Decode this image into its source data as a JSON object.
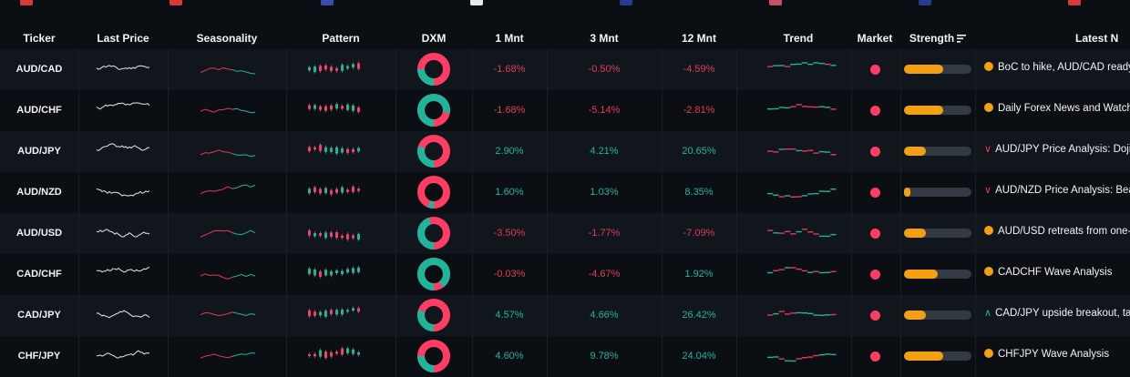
{
  "columns": {
    "ticker": "Ticker",
    "last_price": "Last Price",
    "seasonality": "Seasonality",
    "pattern": "Pattern",
    "dxm": "DXM",
    "m1": "1 Mnt",
    "m3": "3 Mnt",
    "m12": "12 Mnt",
    "trend": "Trend",
    "market": "Market",
    "strength": "Strength",
    "news": "Latest N"
  },
  "colors": {
    "positive": "#1fb59a",
    "negative": "#e23b58",
    "accent": "#f59f12",
    "market_dot": "#ff3c64"
  },
  "rows": [
    {
      "ticker": "AUD/CAD",
      "m1": "-1.68%",
      "m3": "-0.50%",
      "m12": "-4.59%",
      "dxm_green": 0.25,
      "strength": 0.58,
      "news_icon": "circle",
      "news": "BoC to hike, AUD/CAD ready to"
    },
    {
      "ticker": "AUD/CHF",
      "m1": "-1.68%",
      "m3": "-5.14%",
      "m12": "-2.81%",
      "dxm_green": 0.78,
      "strength": 0.58,
      "news_icon": "circle",
      "news": "Daily Forex News and Watchlist"
    },
    {
      "ticker": "AUD/JPY",
      "m1": "2.90%",
      "m3": "4.21%",
      "m12": "20.65%",
      "dxm_green": 0.3,
      "strength": 0.33,
      "news_icon": "chevron-down",
      "news": "AUD/JPY Price Analysis: Doji"
    },
    {
      "ticker": "AUD/NZD",
      "m1": "1.60%",
      "m3": "1.03%",
      "m12": "8.35%",
      "dxm_green": 0.06,
      "strength": 0.1,
      "news_icon": "chevron-down",
      "news": "AUD/NZD Price Analysis: Bea"
    },
    {
      "ticker": "AUD/USD",
      "m1": "-3.50%",
      "m3": "-1.77%",
      "m12": "-7.09%",
      "dxm_green": 0.45,
      "strength": 0.33,
      "news_icon": "circle",
      "news": "AUD/USD retreats from one-w"
    },
    {
      "ticker": "CAD/CHF",
      "m1": "-0.03%",
      "m3": "-4.67%",
      "m12": "1.92%",
      "dxm_green": 0.9,
      "strength": 0.5,
      "news_icon": "circle",
      "news": "CADCHF Wave Analysis"
    },
    {
      "ticker": "CAD/JPY",
      "m1": "4.57%",
      "m3": "4.66%",
      "m12": "26.42%",
      "dxm_green": 0.3,
      "strength": 0.33,
      "news_icon": "chevron-up",
      "news": "CAD/JPY upside breakout, tar"
    },
    {
      "ticker": "CHF/JPY",
      "m1": "4.60%",
      "m3": "9.78%",
      "m12": "24.04%",
      "dxm_green": 0.25,
      "strength": 0.58,
      "news_icon": "circle",
      "news": "CHFJPY Wave Analysis"
    }
  ]
}
